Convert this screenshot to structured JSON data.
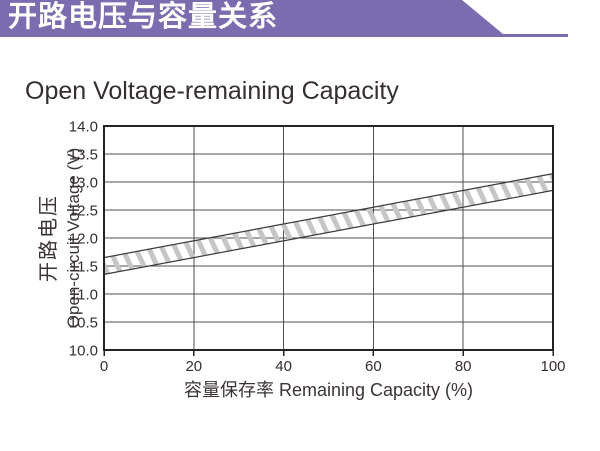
{
  "page": {
    "background": "#ffffff"
  },
  "header": {
    "title": "开路电压与容量关系",
    "bg_color": "#7a6cae",
    "text_color": "#ffffff"
  },
  "chart_data": {
    "type": "area",
    "title": "Open Voltage-remaining Capacity",
    "xlabel": "容量保存率 Remaining Capacity (%)",
    "ylabel_line1": "开路电压",
    "ylabel_line2": "Open-circuit Voltage (V)",
    "xlim": [
      0,
      100
    ],
    "ylim": [
      10.0,
      14.0
    ],
    "xticks": [
      "0",
      "20",
      "40",
      "60",
      "80",
      "100"
    ],
    "yticks": [
      "14.0",
      "13.5",
      "13.0",
      "12.5",
      "12.0",
      "11.5",
      "11.0",
      "10.5",
      "10.0"
    ],
    "grid": true,
    "legend": "none",
    "band": {
      "description": "hatched tolerance band of open-circuit voltage vs remaining capacity",
      "x": [
        0,
        100
      ],
      "upper": [
        11.65,
        13.15
      ],
      "lower": [
        11.35,
        12.85
      ]
    },
    "colors": {
      "grid": "#4f4f4f",
      "border": "#232323",
      "band_edge": "#3a3a3a",
      "hatch": "#c6c6c6",
      "text": "#352e31"
    }
  }
}
